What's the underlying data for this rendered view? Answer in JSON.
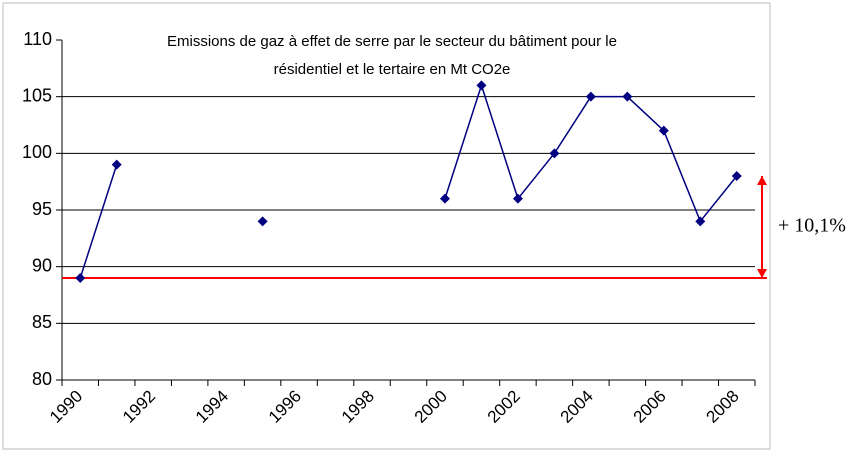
{
  "chart_data": {
    "type": "line",
    "title": [
      "Emissions de gaz à effet de serre par le secteur du bâtiment  pour le",
      "résidentiel et le tertaire en Mt CO2e"
    ],
    "categories": [
      "1990",
      null,
      "1992",
      null,
      "1994",
      null,
      "1996",
      null,
      "1998",
      null,
      "2000",
      null,
      "2002",
      null,
      "2004",
      null,
      "2006",
      null,
      "2008"
    ],
    "series": [
      {
        "name": "Emissions",
        "color": "#000080",
        "values": [
          89,
          99,
          null,
          null,
          null,
          94,
          null,
          null,
          null,
          null,
          96,
          106,
          96,
          100,
          105,
          105,
          102,
          94,
          98
        ]
      }
    ],
    "ylim": [
      80,
      110
    ],
    "yticks": [
      80,
      85,
      90,
      95,
      100,
      105,
      110
    ],
    "grid": true,
    "reference_line": {
      "value": 89,
      "color": "#ff0000"
    },
    "annotation": {
      "text": "+ 10,1%",
      "from": 89,
      "to": 98,
      "color": "#ff0000"
    }
  }
}
